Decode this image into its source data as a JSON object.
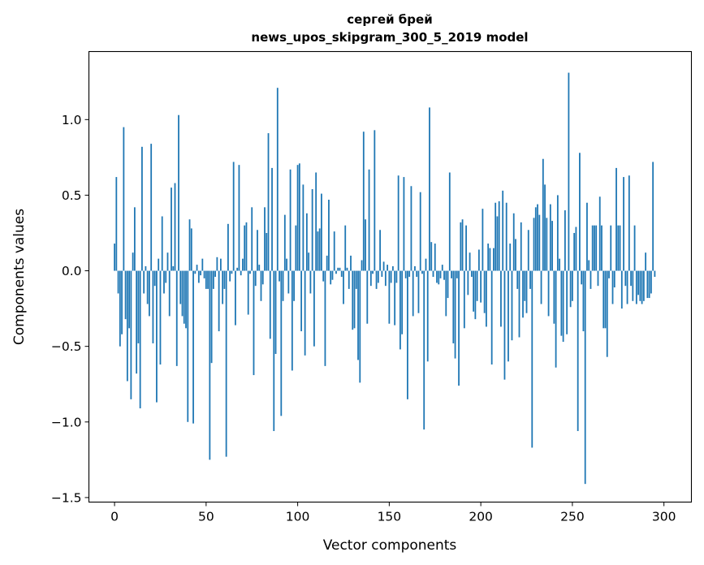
{
  "chart_data": {
    "type": "bar",
    "title": [
      "сергей брей",
      "news_upos_skipgram_300_5_2019 model"
    ],
    "xlabel": "Vector components",
    "ylabel": "Components values",
    "xlim": [
      -14,
      315
    ],
    "ylim": [
      -1.53,
      1.45
    ],
    "xticks": [
      0,
      50,
      100,
      150,
      200,
      250,
      300
    ],
    "yticks": [
      -1.5,
      -1.0,
      -0.5,
      0.0,
      0.5,
      1.0
    ],
    "ytick_labels": [
      "−1.5",
      "−1.0",
      "−0.5",
      "0.0",
      "0.5",
      "1.0"
    ],
    "bar_color": "#1f77b4",
    "grid": false,
    "values": [
      0.18,
      0.62,
      -0.15,
      -0.5,
      -0.42,
      0.95,
      -0.32,
      -0.73,
      -0.38,
      -0.85,
      0.12,
      0.42,
      -0.68,
      -0.48,
      -0.91,
      0.82,
      -0.15,
      0.03,
      -0.22,
      -0.3,
      0.84,
      -0.48,
      -0.1,
      -0.87,
      0.08,
      -0.62,
      0.36,
      -0.15,
      -0.08,
      0.12,
      -0.3,
      0.55,
      0.03,
      0.58,
      -0.63,
      1.03,
      -0.22,
      -0.3,
      -0.35,
      -0.38,
      -1.0,
      0.34,
      0.28,
      -1.01,
      -0.02,
      0.04,
      -0.08,
      -0.03,
      0.08,
      -0.05,
      -0.12,
      -0.12,
      -1.25,
      -0.61,
      -0.12,
      -0.04,
      0.09,
      -0.4,
      0.08,
      -0.22,
      -0.12,
      -1.23,
      0.31,
      -0.07,
      -0.02,
      0.72,
      -0.36,
      0.02,
      0.7,
      -0.03,
      0.08,
      0.3,
      0.32,
      -0.29,
      -0.02,
      0.42,
      -0.69,
      -0.1,
      0.27,
      0.04,
      -0.2,
      -0.09,
      0.42,
      0.25,
      0.91,
      -0.45,
      0.68,
      -1.06,
      -0.55,
      1.21,
      -0.07,
      -0.96,
      -0.2,
      0.37,
      0.08,
      -0.15,
      0.67,
      -0.66,
      -0.2,
      0.3,
      0.7,
      0.71,
      -0.4,
      0.57,
      -0.56,
      0.38,
      0.12,
      -0.15,
      0.54,
      -0.5,
      0.65,
      0.26,
      0.28,
      0.51,
      -0.07,
      -0.63,
      0.1,
      0.47,
      -0.09,
      -0.06,
      0.26,
      -0.02,
      0.02,
      0.02,
      -0.04,
      -0.22,
      0.3,
      0.02,
      -0.12,
      0.1,
      -0.39,
      -0.38,
      -0.12,
      -0.59,
      -0.74,
      0.07,
      0.92,
      0.34,
      -0.35,
      0.67,
      -0.1,
      -0.02,
      0.93,
      -0.12,
      -0.08,
      0.27,
      -0.04,
      0.06,
      -0.1,
      0.04,
      -0.35,
      -0.08,
      0.03,
      -0.36,
      -0.08,
      0.63,
      -0.52,
      -0.42,
      0.62,
      -0.05,
      -0.85,
      -0.04,
      0.56,
      -0.3,
      0.03,
      -0.04,
      -0.28,
      0.52,
      -0.02,
      -1.05,
      0.08,
      -0.6,
      1.08,
      0.19,
      -0.04,
      0.18,
      -0.08,
      -0.09,
      -0.05,
      0.04,
      -0.06,
      -0.3,
      -0.18,
      0.65,
      -0.05,
      -0.48,
      -0.58,
      -0.05,
      -0.76,
      0.32,
      0.34,
      -0.38,
      0.3,
      -0.16,
      0.12,
      -0.04,
      -0.27,
      -0.32,
      -0.2,
      0.14,
      -0.21,
      0.41,
      -0.28,
      -0.37,
      0.18,
      0.15,
      -0.62,
      0.15,
      0.45,
      0.36,
      0.46,
      -0.37,
      0.53,
      -0.72,
      0.45,
      -0.6,
      0.18,
      -0.46,
      0.38,
      0.21,
      -0.12,
      -0.44,
      0.32,
      -0.31,
      -0.2,
      -0.28,
      0.27,
      -0.12,
      -1.17,
      0.35,
      0.42,
      0.44,
      0.37,
      -0.22,
      0.74,
      0.57,
      0.35,
      -0.3,
      0.44,
      0.33,
      -0.35,
      -0.64,
      0.5,
      0.08,
      -0.43,
      -0.47,
      0.4,
      -0.42,
      1.31,
      -0.24,
      -0.2,
      0.25,
      0.29,
      -1.06,
      0.78,
      -0.09,
      -0.4,
      -1.41,
      0.45,
      0.07,
      -0.12,
      0.3,
      0.3,
      0.3,
      -0.1,
      0.49,
      0.3,
      -0.38,
      -0.38,
      -0.57,
      -0.05,
      0.3,
      -0.22,
      -0.11,
      0.68,
      0.3,
      0.3,
      -0.25,
      0.62,
      -0.1,
      -0.22,
      0.63,
      -0.1,
      -0.2,
      0.3,
      -0.22,
      -0.16,
      -0.2,
      -0.22,
      -0.2,
      0.12,
      -0.18,
      -0.18,
      -0.15,
      0.72,
      -0.04
    ]
  }
}
